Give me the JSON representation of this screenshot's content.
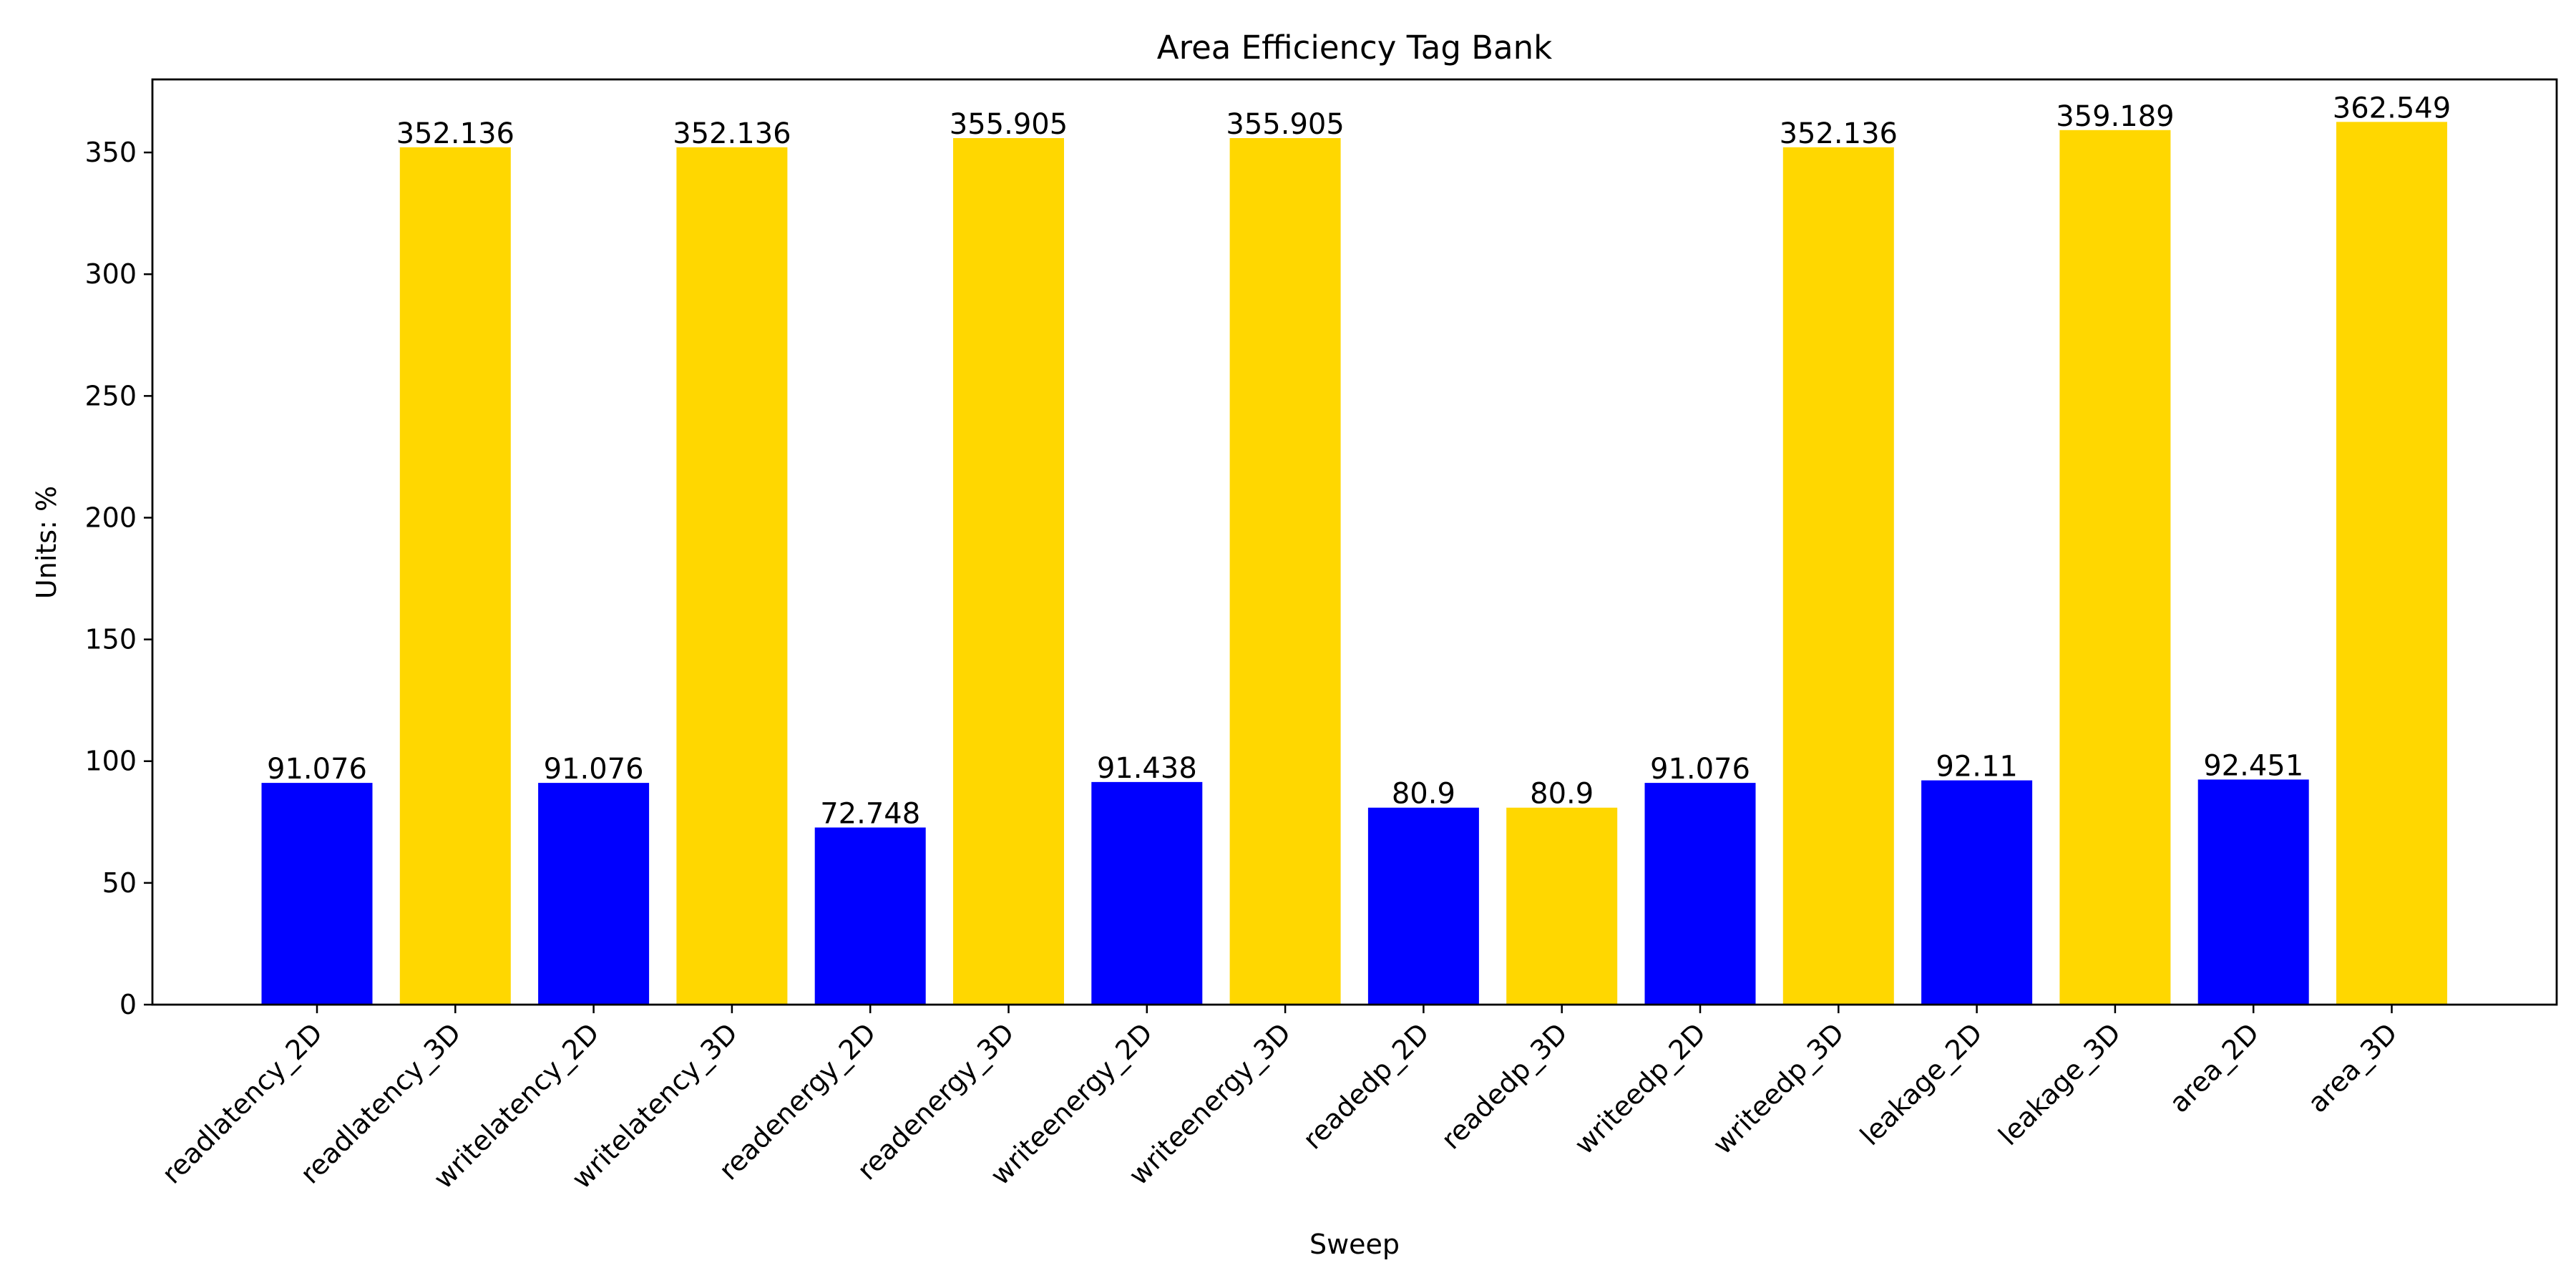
{
  "chart_data": {
    "type": "bar",
    "title": "Area Efficiency Tag Bank",
    "xlabel": "Sweep",
    "ylabel": "Units: %",
    "ylim": [
      0,
      380
    ],
    "yticks": [
      0,
      50,
      100,
      150,
      200,
      250,
      300,
      350
    ],
    "grid": false,
    "legend": "none",
    "colors": {
      "2D": "#0000ff",
      "3D": "#ffd700"
    },
    "categories": [
      "readlatency_2D",
      "readlatency_3D",
      "writelatency_2D",
      "writelatency_3D",
      "readenergy_2D",
      "readenergy_3D",
      "writeenergy_2D",
      "writeenergy_3D",
      "readedp_2D",
      "readedp_3D",
      "writeedp_2D",
      "writeedp_3D",
      "leakage_2D",
      "leakage_3D",
      "area_2D",
      "area_3D"
    ],
    "values": [
      91.076,
      352.136,
      91.076,
      352.136,
      72.748,
      355.905,
      91.438,
      355.905,
      80.9,
      80.9,
      91.076,
      352.136,
      92.11,
      359.189,
      92.451,
      362.549
    ],
    "value_labels": [
      "91.076",
      "352.136",
      "91.076",
      "352.136",
      "72.748",
      "355.905",
      "91.438",
      "355.905",
      "80.9",
      "80.9",
      "91.076",
      "352.136",
      "92.11",
      "359.189",
      "92.451",
      "362.549"
    ]
  }
}
